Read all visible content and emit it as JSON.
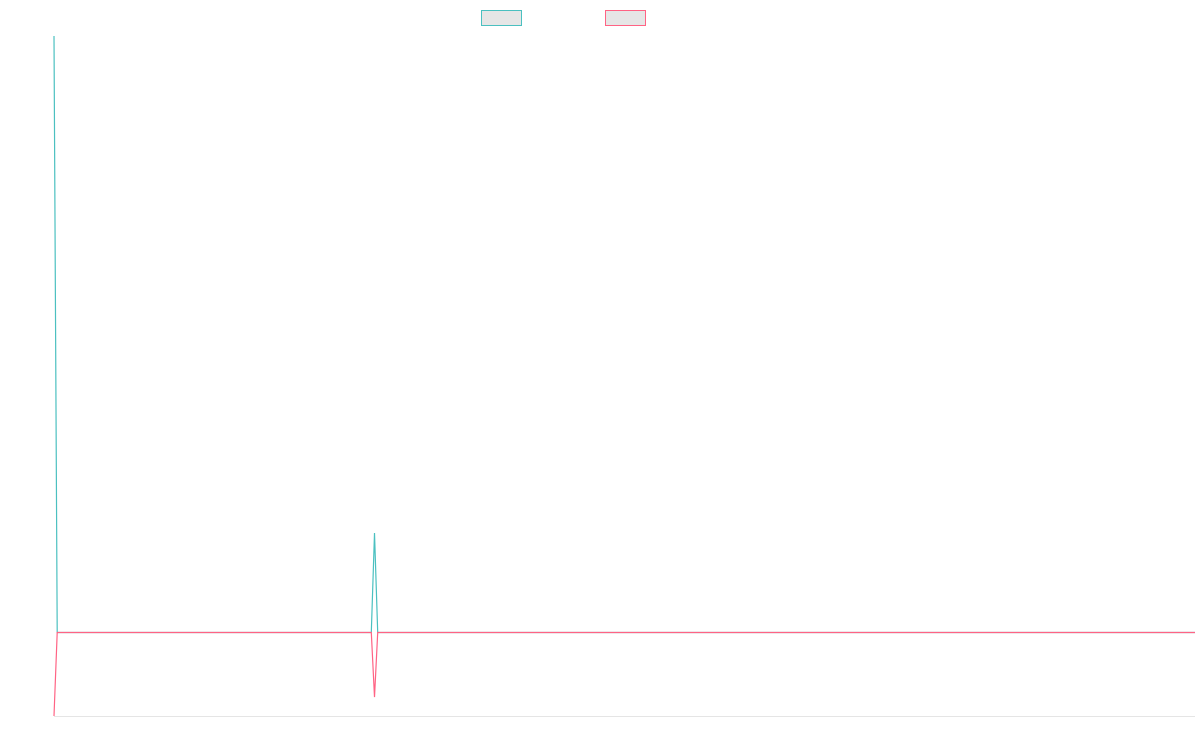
{
  "chart_data": {
    "type": "line",
    "x": [
      0,
      1,
      99,
      100,
      101,
      356
    ],
    "xlim": [
      0,
      356
    ],
    "ylim": [
      -84,
      600
    ],
    "legend": "top",
    "series": [
      {
        "color": "#4bc0c0",
        "values": [
          600,
          0,
          0,
          100,
          0,
          0
        ]
      },
      {
        "color": "#ff6384",
        "values": [
          -84,
          0,
          0,
          -65,
          0,
          0
        ]
      }
    ]
  }
}
